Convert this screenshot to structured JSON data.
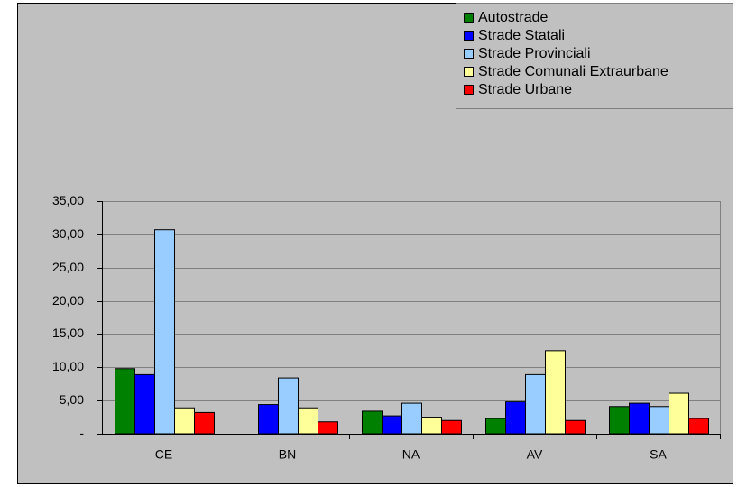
{
  "chart_data": {
    "type": "bar",
    "categories": [
      "CE",
      "BN",
      "NA",
      "AV",
      "SA"
    ],
    "series": [
      {
        "name": "Autostrade",
        "color": "#008000",
        "values": [
          9.8,
          0,
          3.4,
          2.3,
          4.1
        ]
      },
      {
        "name": "Strade Statali",
        "color": "#0000ff",
        "values": [
          8.9,
          4.4,
          2.7,
          4.8,
          4.6
        ]
      },
      {
        "name": "Strade Provinciali",
        "color": "#99ccff",
        "values": [
          30.7,
          8.4,
          4.6,
          8.9,
          4.1
        ]
      },
      {
        "name": "Strade Comunali Extraurbane",
        "color": "#ffff99",
        "values": [
          3.9,
          3.9,
          2.5,
          12.5,
          6.1
        ]
      },
      {
        "name": "Strade Urbane",
        "color": "#ff0000",
        "values": [
          3.2,
          1.8,
          2.0,
          2.0,
          2.3
        ]
      }
    ],
    "ylim": [
      0,
      35
    ],
    "yticks": [
      {
        "value": 0,
        "label": "-"
      },
      {
        "value": 5,
        "label": "5,00"
      },
      {
        "value": 10,
        "label": "10,00"
      },
      {
        "value": 15,
        "label": "15,00"
      },
      {
        "value": 20,
        "label": "20,00"
      },
      {
        "value": 25,
        "label": "25,00"
      },
      {
        "value": 30,
        "label": "30,00"
      },
      {
        "value": 35,
        "label": "35,00"
      }
    ],
    "grid": true,
    "legend": "top-right"
  }
}
